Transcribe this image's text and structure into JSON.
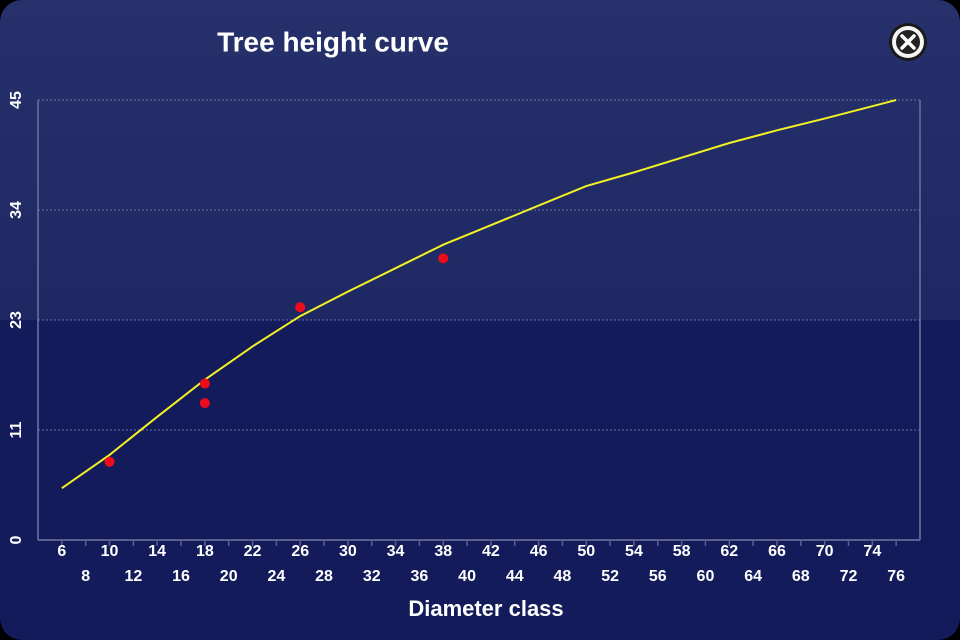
{
  "chart_data": {
    "type": "scatter",
    "title": "Tree height curve",
    "x_label": "Diameter class",
    "xlim": [
      4,
      78
    ],
    "xticks": [
      6,
      8,
      10,
      12,
      14,
      16,
      18,
      20,
      22,
      24,
      26,
      28,
      30,
      32,
      34,
      36,
      38,
      40,
      42,
      44,
      46,
      48,
      50,
      52,
      54,
      56,
      58,
      60,
      62,
      64,
      66,
      68,
      70,
      72,
      74,
      76
    ],
    "ylim": [
      0,
      45
    ],
    "yticks": [
      0,
      {
        "value": 11.25,
        "label": "11"
      },
      {
        "value": 22.5,
        "label": "23"
      },
      {
        "value": 33.75,
        "label": "34"
      },
      45
    ],
    "grid": true,
    "series": [
      {
        "type": "line",
        "color": "#f2f224",
        "x": [
          6,
          10,
          14,
          18,
          22,
          26,
          30,
          34,
          38,
          42,
          46,
          50,
          54,
          58,
          62,
          66,
          70,
          76
        ],
        "values": [
          5.3,
          8.7,
          12.6,
          16.4,
          19.8,
          22.9,
          25.4,
          27.8,
          30.2,
          32.2,
          34.2,
          36.2,
          37.6,
          39.1,
          40.6,
          41.9,
          43.1,
          45
        ]
      },
      {
        "type": "scatter",
        "color": "#ee0c1c",
        "x": [
          10,
          18,
          18,
          26,
          38
        ],
        "values": [
          8,
          16,
          14,
          23.8,
          28.8
        ]
      }
    ]
  }
}
